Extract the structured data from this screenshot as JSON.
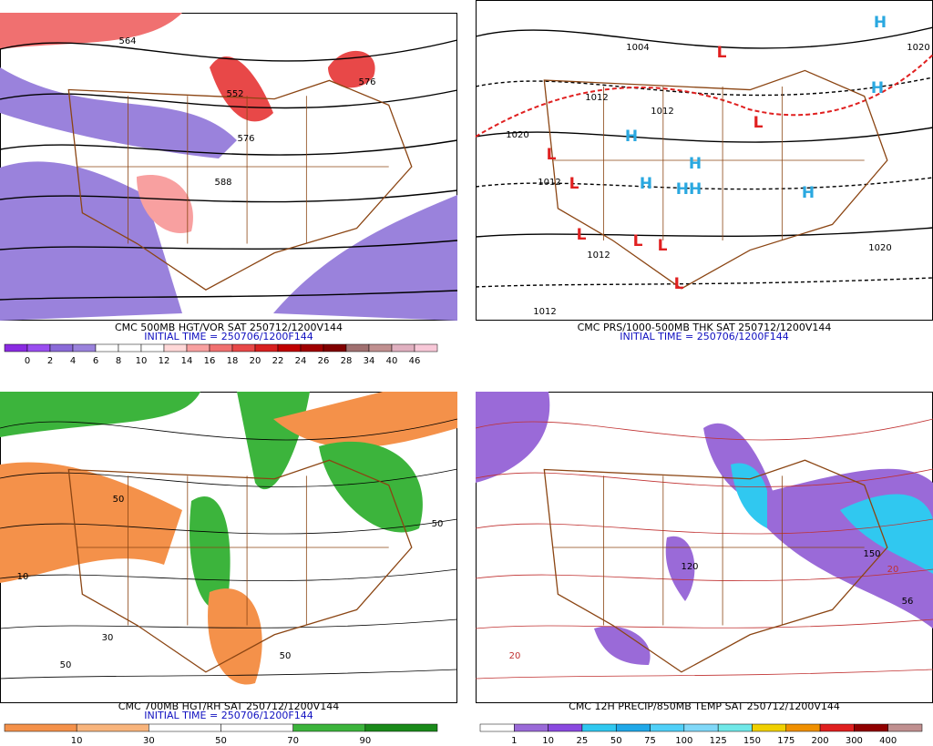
{
  "panels": [
    {
      "title": "CMC 500MB HGT/VOR SAT 250712/1200V144",
      "subtitle": "INITIAL TIME = 250706/1200F144",
      "colorbar": {
        "colors": [
          "#8a2be2",
          "#9a4ef0",
          "#8a6ad8",
          "#9a82dc",
          "#ffffff",
          "#ffffff",
          "#ffffff",
          "#ffd8d8",
          "#f8a0a0",
          "#f07070",
          "#e84848",
          "#d82020",
          "#c00000",
          "#a00000",
          "#800000",
          "#a07070",
          "#c09090",
          "#e0b0c0",
          "#f8c8d8"
        ],
        "labels": [
          "0",
          "2",
          "4",
          "6",
          "8",
          "10",
          "12",
          "14",
          "16",
          "18",
          "20",
          "22",
          "24",
          "26",
          "28",
          "34",
          "40",
          "46"
        ]
      },
      "map_labels": [
        {
          "text": "564",
          "color": "#000000"
        },
        {
          "text": "576",
          "color": "#000000"
        },
        {
          "text": "552",
          "color": "#000000"
        },
        {
          "text": "576",
          "color": "#000000"
        },
        {
          "text": "588",
          "color": "#000000"
        }
      ]
    },
    {
      "title": "CMC PRS/1000-500MB THK SAT 250712/1200V144",
      "subtitle": "INITIAL TIME = 250706/1200F144",
      "map_labels": [
        {
          "text": "H",
          "color": "#2aa8e0"
        },
        {
          "text": "H",
          "color": "#2aa8e0"
        },
        {
          "text": "H",
          "color": "#2aa8e0"
        },
        {
          "text": "H",
          "color": "#2aa8e0"
        },
        {
          "text": "H",
          "color": "#2aa8e0"
        },
        {
          "text": "HH",
          "color": "#2aa8e0"
        },
        {
          "text": "H",
          "color": "#2aa8e0"
        },
        {
          "text": "L",
          "color": "#e02020"
        },
        {
          "text": "L",
          "color": "#e02020"
        },
        {
          "text": "L",
          "color": "#e02020"
        },
        {
          "text": "L",
          "color": "#e02020"
        },
        {
          "text": "L",
          "color": "#e02020"
        },
        {
          "text": "L",
          "color": "#e02020"
        },
        {
          "text": "L",
          "color": "#e02020"
        },
        {
          "text": "L",
          "color": "#e02020"
        },
        {
          "text": "1004",
          "color": "#000000"
        },
        {
          "text": "1012",
          "color": "#000000"
        },
        {
          "text": "1020",
          "color": "#000000"
        },
        {
          "text": "1012",
          "color": "#000000"
        },
        {
          "text": "1012",
          "color": "#000000"
        },
        {
          "text": "1012",
          "color": "#000000"
        },
        {
          "text": "1020",
          "color": "#000000"
        },
        {
          "text": "1020",
          "color": "#000000"
        },
        {
          "text": "1012",
          "color": "#000000"
        }
      ]
    },
    {
      "title": "CMC 700MB HGT/RH SAT 250712/1200V144",
      "subtitle": "INITIAL TIME = 250706/1200F144",
      "colorbar": {
        "colors": [
          "#f4914a",
          "#f8b47c",
          "#ffffff",
          "#ffffff",
          "#3cb43c",
          "#1a8a1a"
        ],
        "labels": [
          "10",
          "30",
          "50",
          "70",
          "90"
        ]
      },
      "map_labels": [
        {
          "text": "50",
          "color": "#000000"
        },
        {
          "text": "10",
          "color": "#000000"
        },
        {
          "text": "50",
          "color": "#000000"
        },
        {
          "text": "50",
          "color": "#000000"
        },
        {
          "text": "30",
          "color": "#000000"
        },
        {
          "text": "50",
          "color": "#000000"
        }
      ]
    },
    {
      "title": "CMC 12H PRECIP/850MB TEMP SAT 250712/1200V144",
      "subtitle": "",
      "colorbar": {
        "colors": [
          "#ffffff",
          "#9a6ad8",
          "#8a4ae0",
          "#30c8f0",
          "#20a8e8",
          "#50d0f8",
          "#80d8f8",
          "#70e8e8",
          "#f0d000",
          "#f09000",
          "#e02020",
          "#900000",
          "#c09090"
        ],
        "labels": [
          "1",
          "10",
          "25",
          "50",
          "75",
          "100",
          "125",
          "150",
          "175",
          "200",
          "300",
          "400"
        ]
      },
      "map_labels": [
        {
          "text": "20",
          "color": "#c03030"
        },
        {
          "text": "20",
          "color": "#c03030"
        },
        {
          "text": "150",
          "color": "#000000"
        },
        {
          "text": "120",
          "color": "#000000"
        },
        {
          "text": "56",
          "color": "#000000"
        }
      ]
    }
  ]
}
